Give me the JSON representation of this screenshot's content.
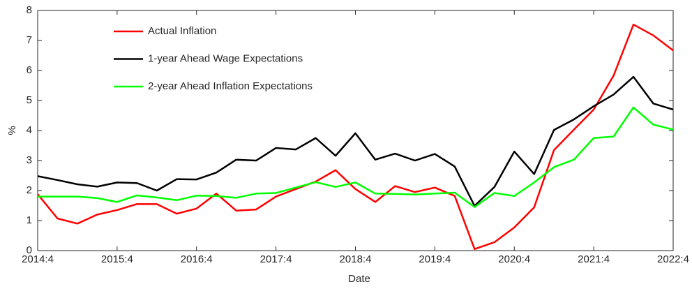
{
  "chart_data": {
    "type": "line",
    "categories": [
      "2014:4",
      null,
      null,
      null,
      "2015:4",
      null,
      null,
      null,
      "2016:4",
      null,
      null,
      null,
      "2017:4",
      null,
      null,
      null,
      "2018:4",
      null,
      null,
      null,
      "2019:4",
      null,
      null,
      null,
      "2020:4",
      null,
      null,
      null,
      "2021:4",
      null,
      null,
      null,
      "2022:4"
    ],
    "xlabel": "Date",
    "ylabel": "%",
    "ylim": [
      0,
      8
    ],
    "yticks": [
      0,
      1,
      2,
      3,
      4,
      5,
      6,
      7,
      8
    ],
    "grid": false,
    "legend_loc": "upper left",
    "series": [
      {
        "name": "Actual Inflation",
        "color": "#ff0000",
        "values": [
          1.88,
          1.07,
          0.9,
          1.2,
          1.35,
          1.55,
          1.55,
          1.23,
          1.4,
          1.9,
          1.33,
          1.37,
          1.8,
          2.05,
          2.3,
          2.68,
          2.05,
          1.62,
          2.15,
          1.95,
          2.1,
          1.82,
          0.05,
          0.28,
          0.77,
          1.44,
          3.35,
          4.03,
          4.7,
          5.83,
          7.53,
          7.17,
          6.67
        ]
      },
      {
        "name": "1-year Ahead Wage Expectations",
        "color": "#000000",
        "values": [
          2.48,
          2.35,
          2.21,
          2.13,
          2.27,
          2.25,
          2.0,
          2.38,
          2.37,
          2.6,
          3.03,
          3.0,
          3.42,
          3.37,
          3.75,
          3.16,
          3.91,
          3.03,
          3.23,
          3.0,
          3.22,
          2.8,
          1.49,
          2.12,
          3.3,
          2.55,
          4.02,
          4.37,
          4.81,
          5.2,
          5.79,
          4.9,
          4.7
        ]
      },
      {
        "name": "2-year Ahead Inflation Expectations",
        "color": "#00ff00",
        "values": [
          1.8,
          1.8,
          1.8,
          1.75,
          1.62,
          1.84,
          1.77,
          1.68,
          1.83,
          1.82,
          1.76,
          1.9,
          1.92,
          2.1,
          2.28,
          2.12,
          2.27,
          1.9,
          1.89,
          1.87,
          1.9,
          1.93,
          1.45,
          1.92,
          1.82,
          2.27,
          2.78,
          3.03,
          3.75,
          3.8,
          4.77,
          4.2,
          4.03
        ]
      }
    ]
  }
}
